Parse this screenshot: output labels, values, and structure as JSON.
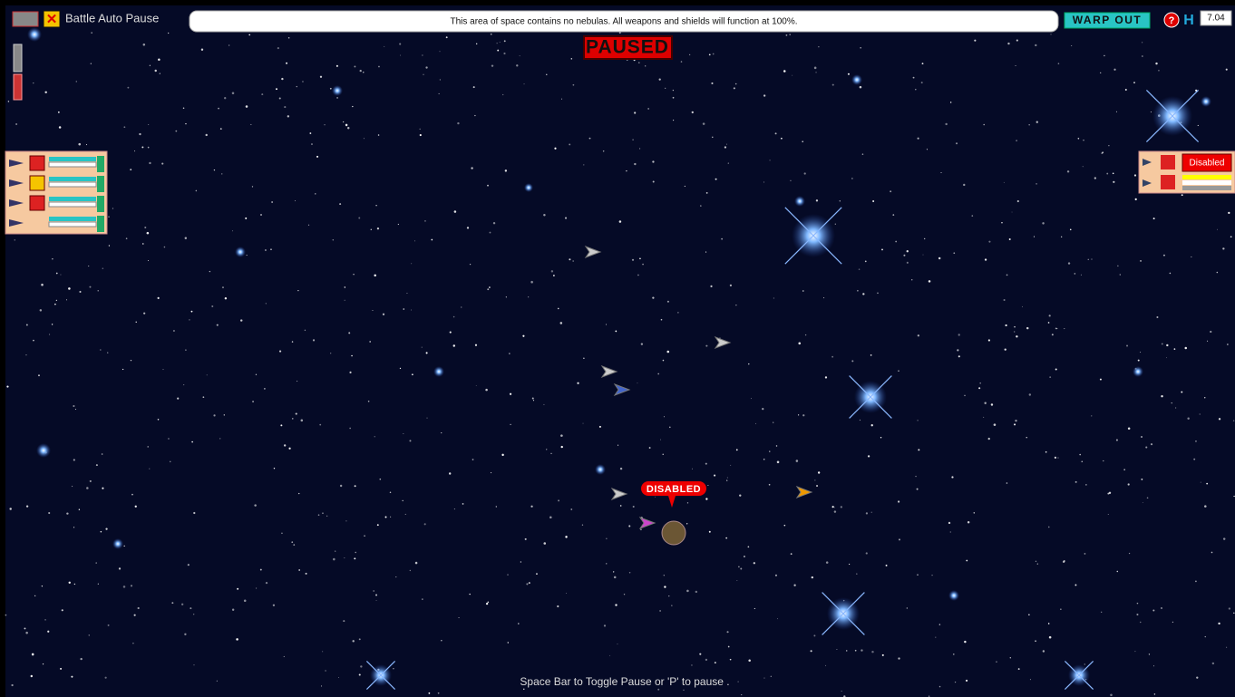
{
  "top_bar": {
    "auto_pause_label": "Battle Auto Pause",
    "message": "This area of space contains no nebulas. All weapons and shields will function at 100%.",
    "warp_button": "WARP OUT",
    "help_key": "H",
    "version": "7.04"
  },
  "status": {
    "paused": "PAUSED"
  },
  "enemy_panel": {
    "status": "Disabled"
  },
  "battlefield": {
    "ship_label": "DISABLED"
  },
  "footer": {
    "hint": "Space Bar to Toggle Pause or 'P' to pause ."
  }
}
